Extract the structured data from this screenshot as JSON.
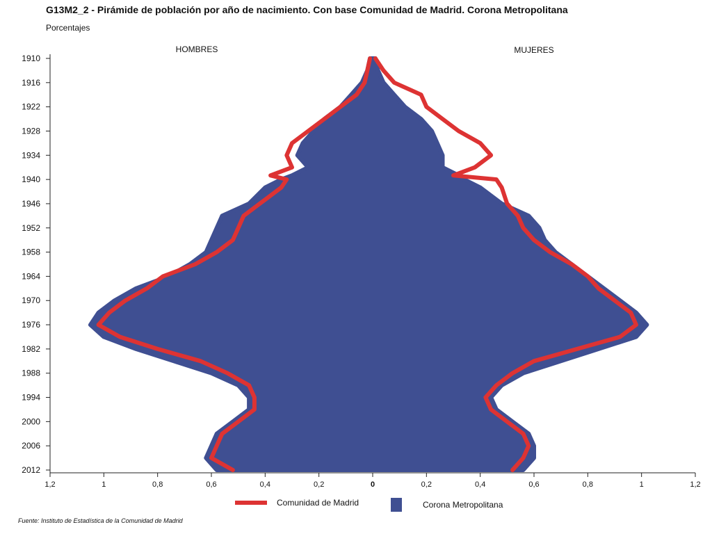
{
  "title": "G13M2_2 - Pirámide de población por año de nacimiento. Con base Comunidad de Madrid. Corona Metropolitana",
  "subtitle": "Porcentajes",
  "source": "Fuente: Instituto de Estadística de la Comunidad de Madrid",
  "colors": {
    "madrid": "#dd3333",
    "corona": "#3f4f92",
    "axis": "#222222"
  },
  "chart_data": {
    "type": "area",
    "title": "G13M2_2 - Pirámide de población por año de nacimiento. Con base Comunidad de Madrid. Corona Metropolitana",
    "left_label": "HOMBRES",
    "right_label": "MUJERES",
    "x_ticks": [
      "1,2",
      "1",
      "0,8",
      "0,6",
      "0,4",
      "0,2",
      "0",
      "0,2",
      "0,4",
      "0,6",
      "0,8",
      "1",
      "1,2"
    ],
    "xlim": [
      -1.2,
      1.2
    ],
    "y_ticks": [
      "1910",
      "1916",
      "1922",
      "1928",
      "1934",
      "1940",
      "1946",
      "1952",
      "1958",
      "1964",
      "1970",
      "1976",
      "1982",
      "1988",
      "1994",
      "2000",
      "2006",
      "2012"
    ],
    "ylim": [
      1910,
      2012
    ],
    "grid": false,
    "years": [
      1910,
      1913,
      1916,
      1919,
      1922,
      1925,
      1928,
      1931,
      1934,
      1937,
      1939,
      1940,
      1942,
      1946,
      1949,
      1952,
      1955,
      1958,
      1961,
      1964,
      1967,
      1970,
      1973,
      1976,
      1979,
      1982,
      1985,
      1988,
      1991,
      1994,
      1997,
      2000,
      2003,
      2006,
      2009,
      2012
    ],
    "series": [
      {
        "name": "Corona Metropolitana",
        "hombres": [
          0.01,
          0.02,
          0.04,
          0.08,
          0.12,
          0.18,
          0.22,
          0.26,
          0.28,
          0.24,
          0.3,
          0.34,
          0.4,
          0.46,
          0.56,
          0.58,
          0.6,
          0.62,
          0.68,
          0.76,
          0.88,
          0.96,
          1.02,
          1.05,
          1.0,
          0.88,
          0.74,
          0.6,
          0.5,
          0.46,
          0.46,
          0.52,
          0.58,
          0.6,
          0.62,
          0.58
        ],
        "mujeres": [
          0.01,
          0.02,
          0.04,
          0.08,
          0.12,
          0.18,
          0.22,
          0.24,
          0.26,
          0.26,
          0.32,
          0.34,
          0.4,
          0.48,
          0.58,
          0.62,
          0.64,
          0.68,
          0.74,
          0.8,
          0.86,
          0.92,
          0.98,
          1.02,
          0.98,
          0.84,
          0.7,
          0.56,
          0.48,
          0.44,
          0.46,
          0.52,
          0.58,
          0.6,
          0.6,
          0.56
        ]
      },
      {
        "name": "Comunidad de Madrid",
        "hombres": [
          0.01,
          0.02,
          0.03,
          0.06,
          0.12,
          0.18,
          0.24,
          0.3,
          0.32,
          0.3,
          0.38,
          0.32,
          0.34,
          0.42,
          0.48,
          0.5,
          0.52,
          0.58,
          0.66,
          0.78,
          0.84,
          0.92,
          0.98,
          1.02,
          0.94,
          0.8,
          0.64,
          0.54,
          0.46,
          0.44,
          0.44,
          0.5,
          0.56,
          0.58,
          0.6,
          0.52
        ],
        "mujeres": [
          0.01,
          0.04,
          0.08,
          0.18,
          0.2,
          0.26,
          0.32,
          0.4,
          0.44,
          0.38,
          0.3,
          0.46,
          0.48,
          0.5,
          0.54,
          0.56,
          0.6,
          0.66,
          0.74,
          0.8,
          0.84,
          0.9,
          0.96,
          0.98,
          0.92,
          0.76,
          0.6,
          0.52,
          0.46,
          0.42,
          0.44,
          0.5,
          0.56,
          0.58,
          0.56,
          0.52
        ]
      }
    ]
  }
}
